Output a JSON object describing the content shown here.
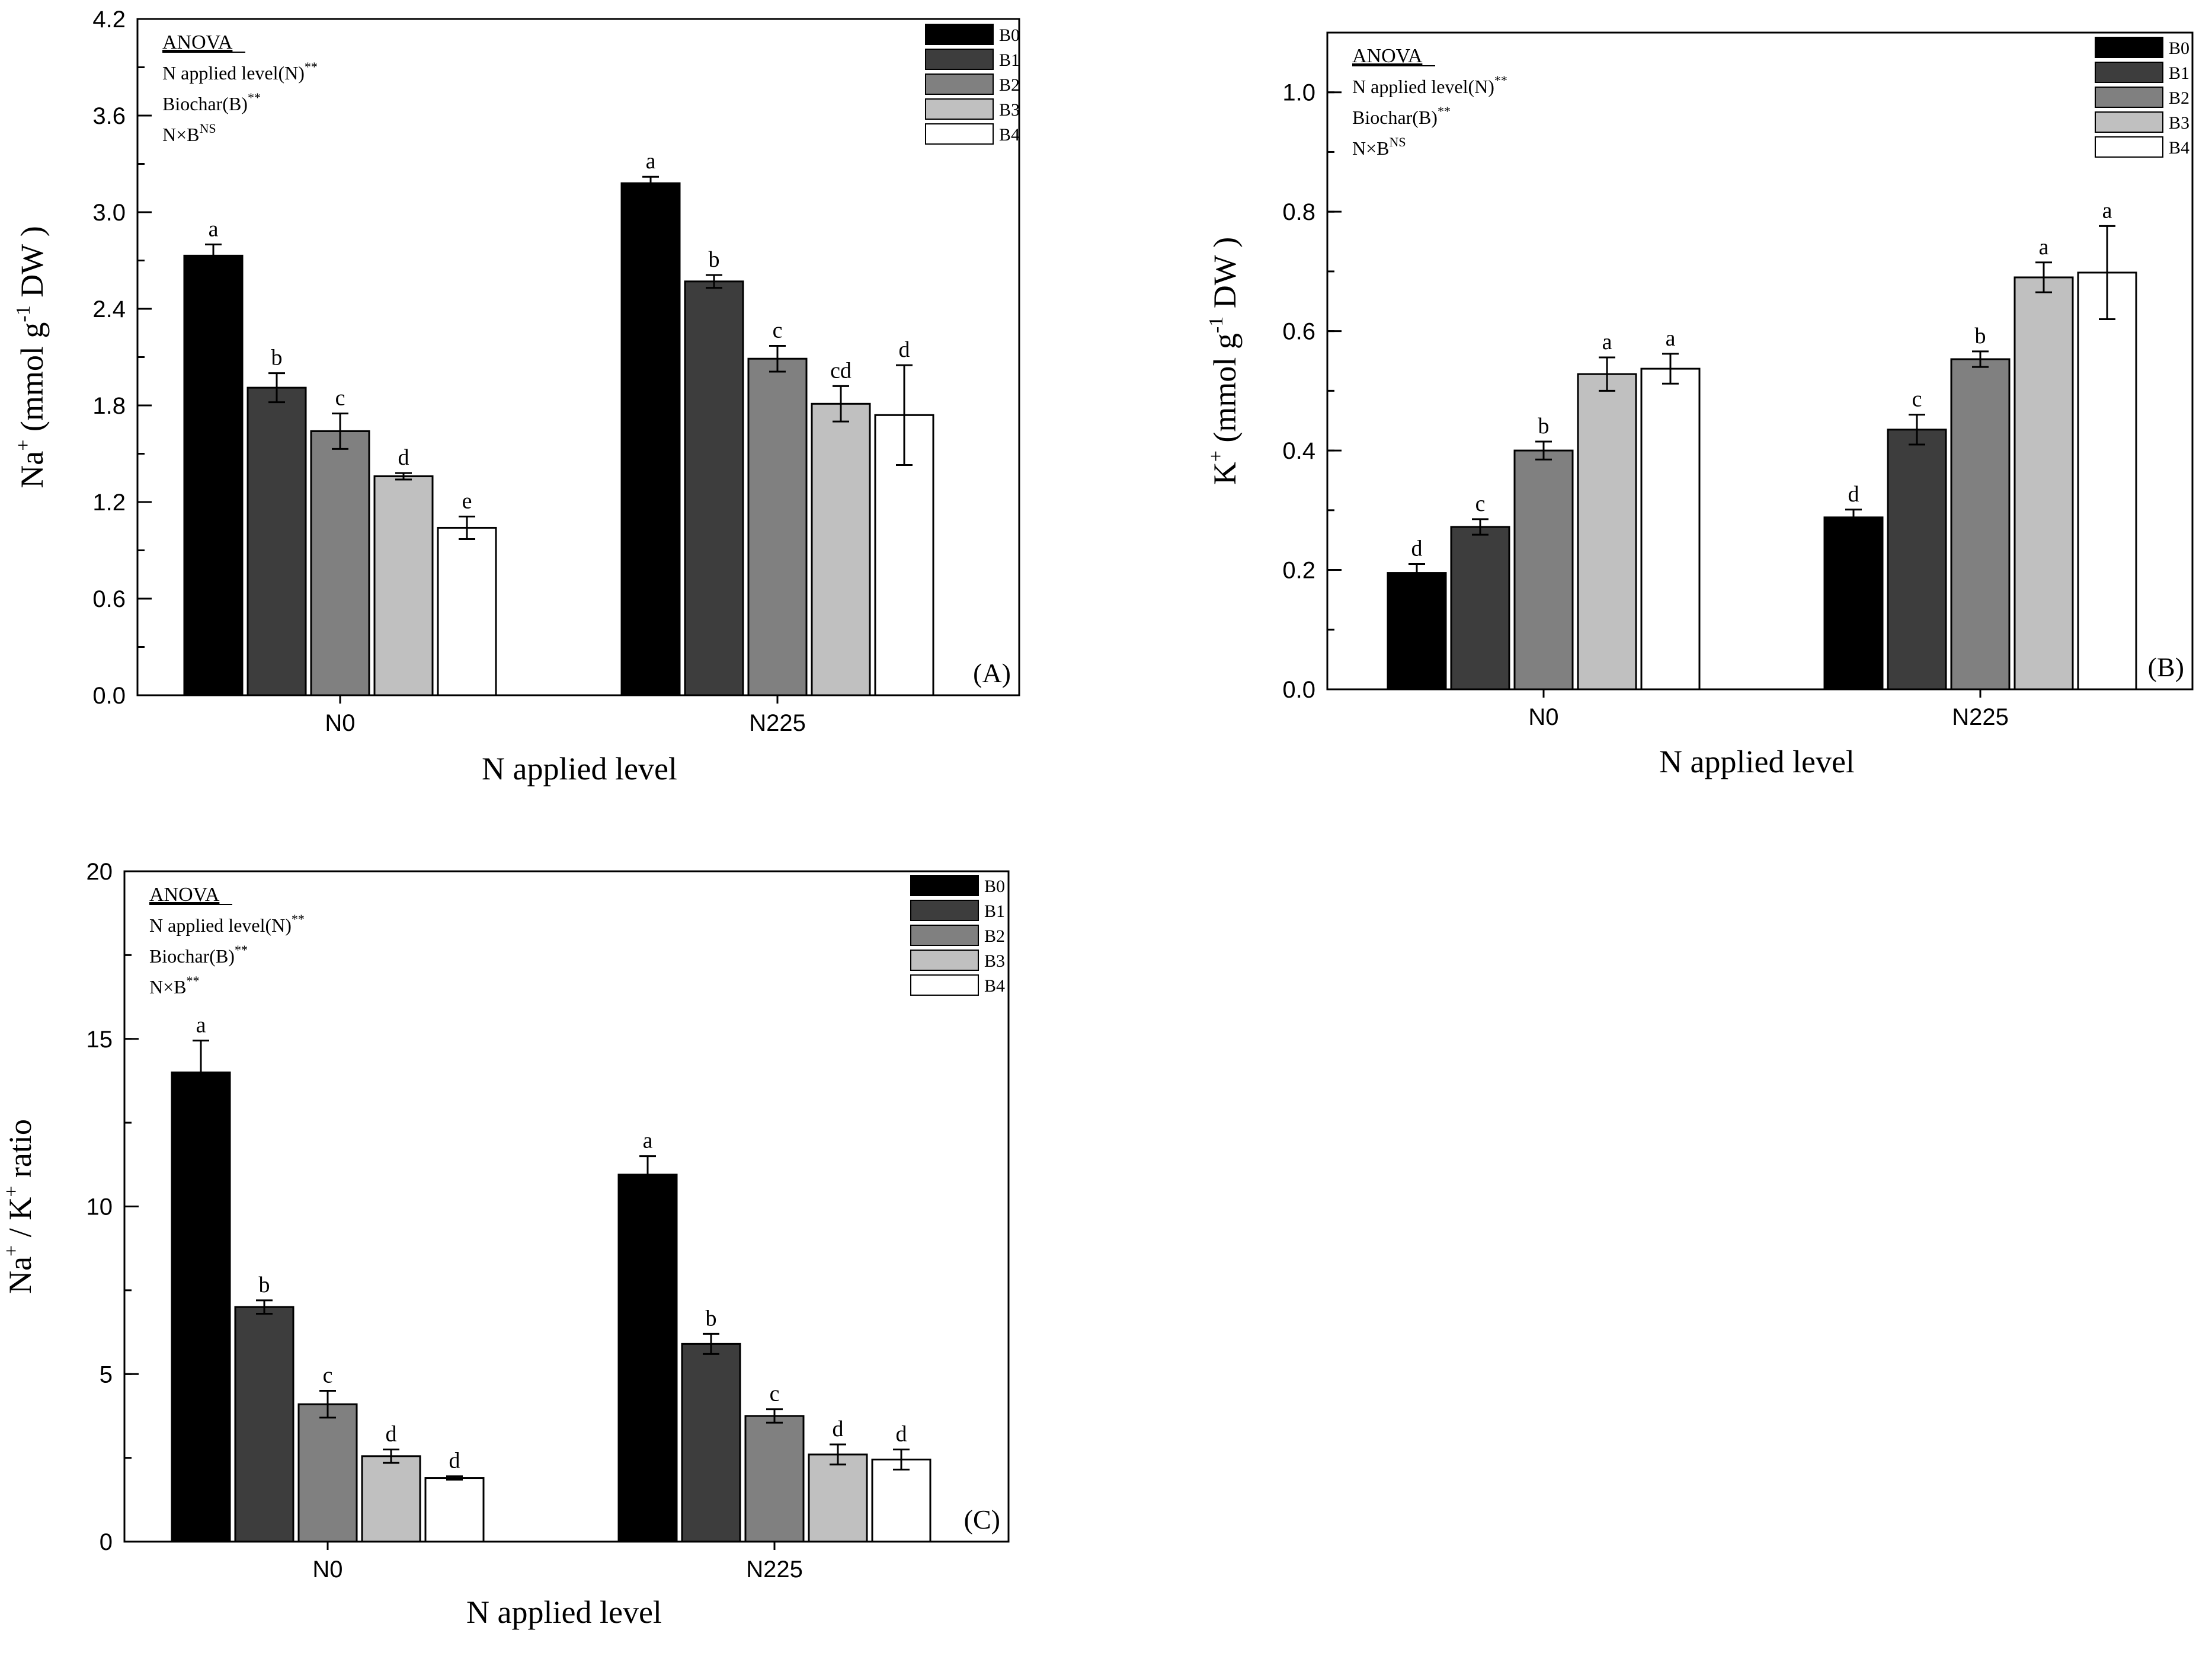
{
  "legend_keys": [
    "B0",
    "B1",
    "B2",
    "B3",
    "B4"
  ],
  "legend_colors": [
    "#000000",
    "#3d3d3d",
    "#808080",
    "#c0c0c0",
    "#ffffff"
  ],
  "chart_data": [
    {
      "type": "bar",
      "panel": "(A)",
      "categories": [
        "N0",
        "N225"
      ],
      "xlabel": "N applied level",
      "ylabel": {
        "base": "Na",
        "sup": "+",
        "unit_pre": " (mmol g",
        "unit_sup": "-1",
        "unit_post": " DW )"
      },
      "ylim": [
        0,
        4.2
      ],
      "yticks": [
        "0.0",
        "0.6",
        "1.2",
        "1.8",
        "2.4",
        "3.0",
        "3.6",
        "4.2"
      ],
      "ytick_values": [
        0,
        0.6,
        1.2,
        1.8,
        2.4,
        3.0,
        3.6,
        4.2
      ],
      "minor_step": 0.3,
      "anova": {
        "title": "ANOVA",
        "lines": [
          {
            "text": "N applied level(N)",
            "sup": "**"
          },
          {
            "text": "Biochar(B)",
            "sup": "**"
          },
          {
            "text": "N×B",
            "sup": "NS"
          }
        ]
      },
      "series": [
        {
          "name": "B0",
          "values": [
            2.73,
            3.18
          ],
          "errors": [
            0.07,
            0.04
          ],
          "letters": [
            "a",
            "a"
          ]
        },
        {
          "name": "B1",
          "values": [
            1.91,
            2.57
          ],
          "errors": [
            0.09,
            0.04
          ],
          "letters": [
            "b",
            "b"
          ]
        },
        {
          "name": "B2",
          "values": [
            1.64,
            2.09
          ],
          "errors": [
            0.11,
            0.08
          ],
          "letters": [
            "c",
            "c"
          ]
        },
        {
          "name": "B3",
          "values": [
            1.36,
            1.81
          ],
          "errors": [
            0.02,
            0.11
          ],
          "letters": [
            "d",
            "cd"
          ]
        },
        {
          "name": "B4",
          "values": [
            1.04,
            1.74
          ],
          "errors": [
            0.07,
            0.31
          ],
          "letters": [
            "e",
            "d"
          ]
        }
      ]
    },
    {
      "type": "bar",
      "panel": "(B)",
      "categories": [
        "N0",
        "N225"
      ],
      "xlabel": "N applied level",
      "ylabel": {
        "base": "K",
        "sup": "+",
        "unit_pre": " (mmol g",
        "unit_sup": "-1",
        "unit_post": " DW )"
      },
      "ylim": [
        0,
        1.1
      ],
      "yticks": [
        "0.0",
        "0.2",
        "0.4",
        "0.6",
        "0.8",
        "1.0"
      ],
      "ytick_values": [
        0,
        0.2,
        0.4,
        0.6,
        0.8,
        1.0
      ],
      "minor_step": 0.1,
      "anova": {
        "title": "ANOVA",
        "lines": [
          {
            "text": "N applied level(N)",
            "sup": "**"
          },
          {
            "text": "Biochar(B)",
            "sup": "**"
          },
          {
            "text": "N×B",
            "sup": "NS"
          }
        ]
      },
      "series": [
        {
          "name": "B0",
          "values": [
            0.195,
            0.288
          ],
          "errors": [
            0.015,
            0.013
          ],
          "letters": [
            "d",
            "d"
          ]
        },
        {
          "name": "B1",
          "values": [
            0.272,
            0.435
          ],
          "errors": [
            0.013,
            0.025
          ],
          "letters": [
            "c",
            "c"
          ]
        },
        {
          "name": "B2",
          "values": [
            0.4,
            0.553
          ],
          "errors": [
            0.015,
            0.013
          ],
          "letters": [
            "b",
            "b"
          ]
        },
        {
          "name": "B3",
          "values": [
            0.528,
            0.69
          ],
          "errors": [
            0.028,
            0.025
          ],
          "letters": [
            "a",
            "a"
          ]
        },
        {
          "name": "B4",
          "values": [
            0.537,
            0.698
          ],
          "errors": [
            0.025,
            0.078
          ],
          "letters": [
            "a",
            "a"
          ]
        }
      ]
    },
    {
      "type": "bar",
      "panel": "(C)",
      "categories": [
        "N0",
        "N225"
      ],
      "xlabel": "N applied level",
      "ylabel": {
        "base": "Na",
        "sup": "+",
        "mid": " / K",
        "sup2": "+",
        "post": " ratio"
      },
      "ylim": [
        0,
        20
      ],
      "yticks": [
        "0",
        "5",
        "10",
        "15",
        "20"
      ],
      "ytick_values": [
        0,
        5,
        10,
        15,
        20
      ],
      "minor_step": 2.5,
      "anova": {
        "title": "ANOVA",
        "lines": [
          {
            "text": "N applied level(N)",
            "sup": "**"
          },
          {
            "text": "Biochar(B)",
            "sup": "**"
          },
          {
            "text": "N×B",
            "sup": "**"
          }
        ]
      },
      "series": [
        {
          "name": "B0",
          "values": [
            14.0,
            10.95
          ],
          "errors": [
            0.95,
            0.55
          ],
          "letters": [
            "a",
            "a"
          ]
        },
        {
          "name": "B1",
          "values": [
            7.0,
            5.9
          ],
          "errors": [
            0.2,
            0.3
          ],
          "letters": [
            "b",
            "b"
          ]
        },
        {
          "name": "B2",
          "values": [
            4.1,
            3.75
          ],
          "errors": [
            0.4,
            0.2
          ],
          "letters": [
            "c",
            "c"
          ]
        },
        {
          "name": "B3",
          "values": [
            2.55,
            2.6
          ],
          "errors": [
            0.2,
            0.3
          ],
          "letters": [
            "d",
            "d"
          ]
        },
        {
          "name": "B4",
          "values": [
            1.9,
            2.45
          ],
          "errors": [
            0.05,
            0.3
          ],
          "letters": [
            "d",
            "d"
          ]
        }
      ]
    }
  ]
}
